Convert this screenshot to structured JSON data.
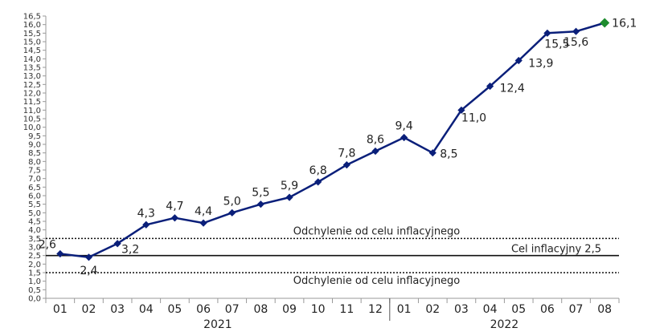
{
  "chart_data": {
    "type": "line",
    "title": "",
    "xlabel": "",
    "ylabel": "",
    "x": [
      "01",
      "02",
      "03",
      "04",
      "05",
      "06",
      "07",
      "08",
      "09",
      "10",
      "11",
      "12",
      "01",
      "02",
      "03",
      "04",
      "05",
      "06",
      "07",
      "08"
    ],
    "year_groups": [
      {
        "label": "2021",
        "start": 0,
        "end": 11
      },
      {
        "label": "2022",
        "start": 12,
        "end": 19
      }
    ],
    "series": [
      {
        "values": [
          2.6,
          2.4,
          3.2,
          4.3,
          4.7,
          4.4,
          5.0,
          5.5,
          5.9,
          6.8,
          7.8,
          8.6,
          9.4,
          8.5,
          11.0,
          12.4,
          13.9,
          15.5,
          15.6,
          16.1
        ],
        "data_labels": [
          "2,6",
          "2,4",
          "3,2",
          "4,3",
          "4,7",
          "4,4",
          "5,0",
          "5,5",
          "5,9",
          "6,8",
          "7,8",
          "8,6",
          "9,4",
          "8,5",
          "11,0",
          "12,4",
          "13,9",
          "15,5",
          "15,6",
          "16,1"
        ],
        "color": "#0a1f7a",
        "last_marker_color": "#1e8c2e"
      }
    ],
    "ylim": [
      0,
      16.5
    ],
    "y_tick_step": 0.5,
    "y_tick_decimal": ",",
    "grid": false,
    "reference_lines": [
      {
        "value": 3.5,
        "style": "dotted",
        "label": "Odchylenie od celu inflacyjnego",
        "label_pos": "center"
      },
      {
        "value": 2.5,
        "style": "solid",
        "label": "Cel inflacyjny 2,5",
        "label_pos": "right"
      },
      {
        "value": 1.5,
        "style": "dotted",
        "label": "Odchylenie od celu inflacyjnego",
        "label_pos": "center"
      }
    ],
    "colors": {
      "line": "#0a1f7a",
      "axis": "#999999",
      "reference": "#111111"
    }
  }
}
